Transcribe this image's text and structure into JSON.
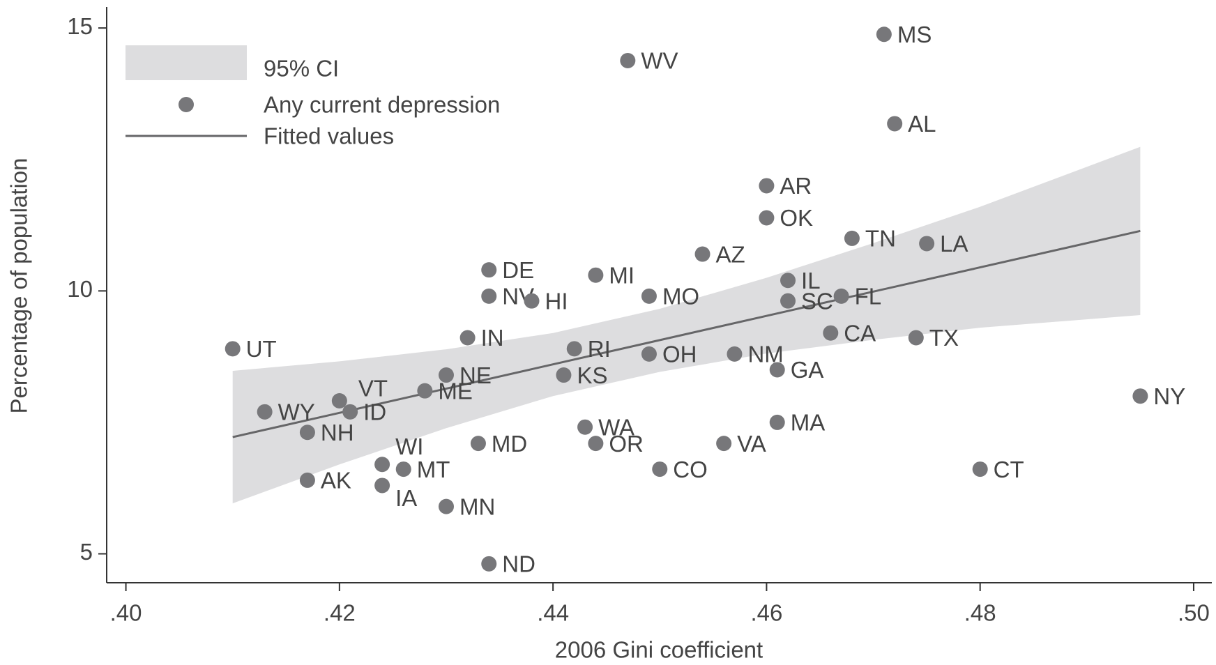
{
  "chart_data": {
    "type": "scatter",
    "x_label": "2006 Gini coefficient",
    "y_label": "Percentage of population",
    "xlim": [
      0.3982,
      0.5017
    ],
    "ylim": [
      4.45,
      15.4
    ],
    "xticks": [
      {
        "value": 0.4,
        "label": ".40"
      },
      {
        "value": 0.42,
        "label": ".42"
      },
      {
        "value": 0.44,
        "label": ".44"
      },
      {
        "value": 0.46,
        "label": ".46"
      },
      {
        "value": 0.48,
        "label": ".48"
      },
      {
        "value": 0.5,
        "label": ".50"
      }
    ],
    "yticks": [
      5,
      10,
      15
    ],
    "legend": "top-left",
    "ci": {
      "name": "95% CI",
      "color": "#dddddf",
      "x": [
        0.41,
        0.42,
        0.43,
        0.44,
        0.45,
        0.46,
        0.47,
        0.48,
        0.495
      ],
      "upper": [
        8.48,
        8.66,
        8.89,
        9.2,
        9.66,
        10.25,
        10.91,
        11.6,
        12.74
      ],
      "lower": [
        5.96,
        6.7,
        7.39,
        8.0,
        8.46,
        8.81,
        9.07,
        9.3,
        9.54
      ]
    },
    "fit": {
      "name": "Fitted values",
      "color": "#666668",
      "x": [
        0.41,
        0.495
      ],
      "values": [
        7.22,
        11.14
      ]
    },
    "series": [
      {
        "name": "Any current depression",
        "color": "#77777a",
        "labels": [
          "MS",
          "WV",
          "AL",
          "AR",
          "OK",
          "TN",
          "LA",
          "AZ",
          "DE",
          "MI",
          "IL",
          "NV",
          "MO",
          "FL",
          "HI",
          "SC",
          "CA",
          "TX",
          "IN",
          "UT",
          "RI",
          "OH",
          "NM",
          "GA",
          "NE",
          "KS",
          "ME",
          "NY",
          "VT",
          "WY",
          "ID",
          "MA",
          "WA",
          "NH",
          "MD",
          "OR",
          "VA",
          "WI",
          "MT",
          "CO",
          "CT",
          "AK",
          "IA",
          "MN",
          "ND"
        ],
        "x": [
          0.471,
          0.447,
          0.472,
          0.46,
          0.46,
          0.468,
          0.475,
          0.454,
          0.434,
          0.444,
          0.462,
          0.434,
          0.449,
          0.467,
          0.438,
          0.462,
          0.466,
          0.474,
          0.432,
          0.41,
          0.442,
          0.449,
          0.457,
          0.461,
          0.43,
          0.441,
          0.428,
          0.495,
          0.42,
          0.413,
          0.421,
          0.461,
          0.443,
          0.417,
          0.433,
          0.444,
          0.456,
          0.424,
          0.426,
          0.45,
          0.48,
          0.417,
          0.424,
          0.43,
          0.434
        ],
        "values": [
          14.88,
          14.38,
          13.18,
          12.0,
          11.39,
          11.0,
          10.9,
          10.7,
          10.4,
          10.3,
          10.2,
          9.9,
          9.9,
          9.9,
          9.81,
          9.81,
          9.2,
          9.11,
          9.11,
          8.9,
          8.9,
          8.8,
          8.8,
          8.5,
          8.4,
          8.4,
          8.1,
          8.0,
          7.91,
          7.7,
          7.7,
          7.5,
          7.41,
          7.31,
          7.1,
          7.1,
          7.1,
          6.7,
          6.61,
          6.61,
          6.61,
          6.4,
          6.3,
          5.9,
          4.81
        ]
      }
    ]
  }
}
